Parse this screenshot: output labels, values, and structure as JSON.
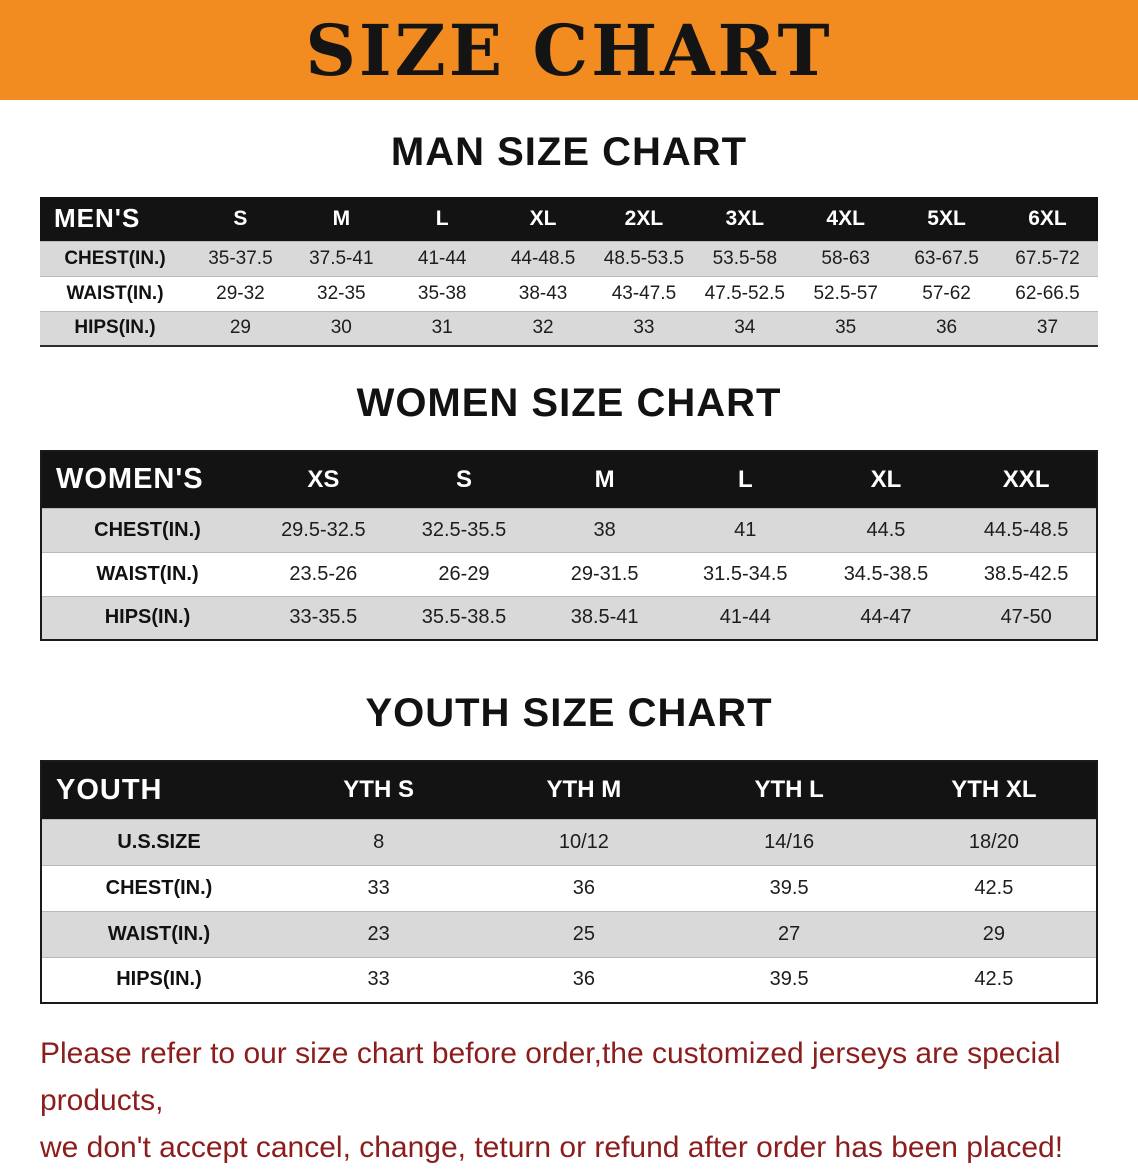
{
  "banner": {
    "title": "SIZE CHART"
  },
  "sections": [
    {
      "key": "men",
      "title": "MAN SIZE CHART",
      "header_label": "MEN'S",
      "columns": [
        "S",
        "M",
        "L",
        "XL",
        "2XL",
        "3XL",
        "4XL",
        "5XL",
        "6XL"
      ],
      "rows": [
        {
          "label": "CHEST(IN.)",
          "values": [
            "35-37.5",
            "37.5-41",
            "41-44",
            "44-48.5",
            "48.5-53.5",
            "53.5-58",
            "58-63",
            "63-67.5",
            "67.5-72"
          ]
        },
        {
          "label": "WAIST(IN.)",
          "values": [
            "29-32",
            "32-35",
            "35-38",
            "38-43",
            "43-47.5",
            "47.5-52.5",
            "52.5-57",
            "57-62",
            "62-66.5"
          ]
        },
        {
          "label": "HIPS(IN.)",
          "values": [
            "29",
            "30",
            "31",
            "32",
            "33",
            "34",
            "35",
            "36",
            "37"
          ]
        }
      ]
    },
    {
      "key": "women",
      "title": "WOMEN SIZE CHART",
      "header_label": "WOMEN'S",
      "columns": [
        "XS",
        "S",
        "M",
        "L",
        "XL",
        "XXL"
      ],
      "rows": [
        {
          "label": "CHEST(IN.)",
          "values": [
            "29.5-32.5",
            "32.5-35.5",
            "38",
            "41",
            "44.5",
            "44.5-48.5"
          ]
        },
        {
          "label": "WAIST(IN.)",
          "values": [
            "23.5-26",
            "26-29",
            "29-31.5",
            "31.5-34.5",
            "34.5-38.5",
            "38.5-42.5"
          ]
        },
        {
          "label": "HIPS(IN.)",
          "values": [
            "33-35.5",
            "35.5-38.5",
            "38.5-41",
            "41-44",
            "44-47",
            "47-50"
          ]
        }
      ]
    },
    {
      "key": "youth",
      "title": "YOUTH SIZE CHART",
      "header_label": "YOUTH",
      "columns": [
        "YTH S",
        "YTH M",
        "YTH L",
        "YTH XL"
      ],
      "rows": [
        {
          "label": "U.S.SIZE",
          "values": [
            "8",
            "10/12",
            "14/16",
            "18/20"
          ]
        },
        {
          "label": "CHEST(IN.)",
          "values": [
            "33",
            "36",
            "39.5",
            "42.5"
          ]
        },
        {
          "label": "WAIST(IN.)",
          "values": [
            "23",
            "25",
            "27",
            "29"
          ]
        },
        {
          "label": "HIPS(IN.)",
          "values": [
            "33",
            "36",
            "39.5",
            "42.5"
          ]
        }
      ]
    }
  ],
  "disclaimer": {
    "line1": "Please refer to our size chart before order,the customized jerseys are special products,",
    "line2": "we don't accept cancel, change, teturn or refund after order has been placed!"
  },
  "colors": {
    "banner_bg": "#f28b20",
    "table_header_bg": "#131313",
    "shaded_row": "#d9d9d9",
    "disclaimer_text": "#8c1d1d"
  }
}
